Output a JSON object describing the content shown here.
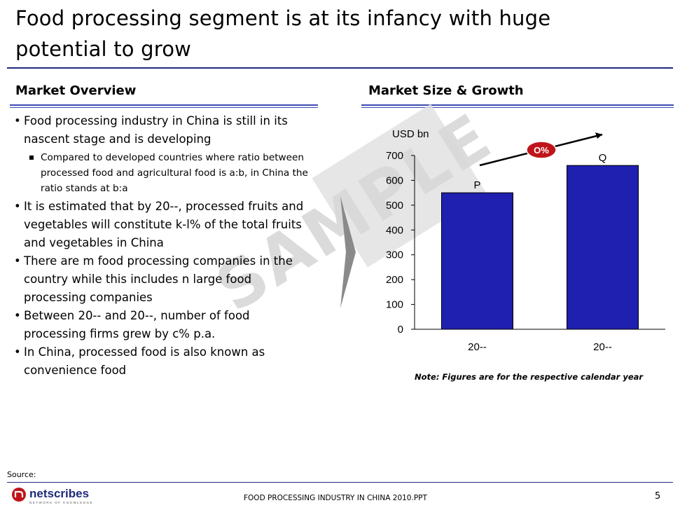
{
  "slide": {
    "title": "Food processing segment is at its infancy with huge potential to grow",
    "left_heading": "Market Overview",
    "right_heading": "Market Size & Growth",
    "watermark": "SAMPLE",
    "note": "Note: Figures are for the respective calendar year",
    "source_label": "Source:",
    "footer": "FOOD PROCESSING INDUSTRY IN CHINA 2010.PPT",
    "page_number": "5",
    "logo_text": "netscribes",
    "logo_tagline": "NETWORK OF KNOWLEDGE",
    "colors": {
      "bar": "#1f1fb0",
      "rule": "#1f2a7a",
      "badge": "#c0141b"
    }
  },
  "bullets": {
    "b1": "Food processing industry in China is still in its nascent stage and is developing",
    "b1_sub": "Compared to developed countries where ratio between processed food and agricultural food is a:b, in China the ratio stands at b:a",
    "b2": "It is estimated that by 20--, processed fruits and vegetables will constitute k-l% of the total fruits and vegetables in China",
    "b3": "There are m food processing companies in the country while this includes n large food processing companies",
    "b4": "Between 20-- and 20--, number of food processing firms grew by c% p.a.",
    "b5": "In China, processed food is also known as convenience food"
  },
  "chart_data": {
    "type": "bar",
    "ylabel": "USD bn",
    "categories": [
      "20--",
      "20--"
    ],
    "values": [
      550,
      660
    ],
    "data_labels": [
      "P",
      "Q"
    ],
    "ylim": [
      0,
      700
    ],
    "yticks": [
      0,
      100,
      200,
      300,
      400,
      500,
      600,
      700
    ],
    "growth_label": "O%",
    "grid": false
  }
}
